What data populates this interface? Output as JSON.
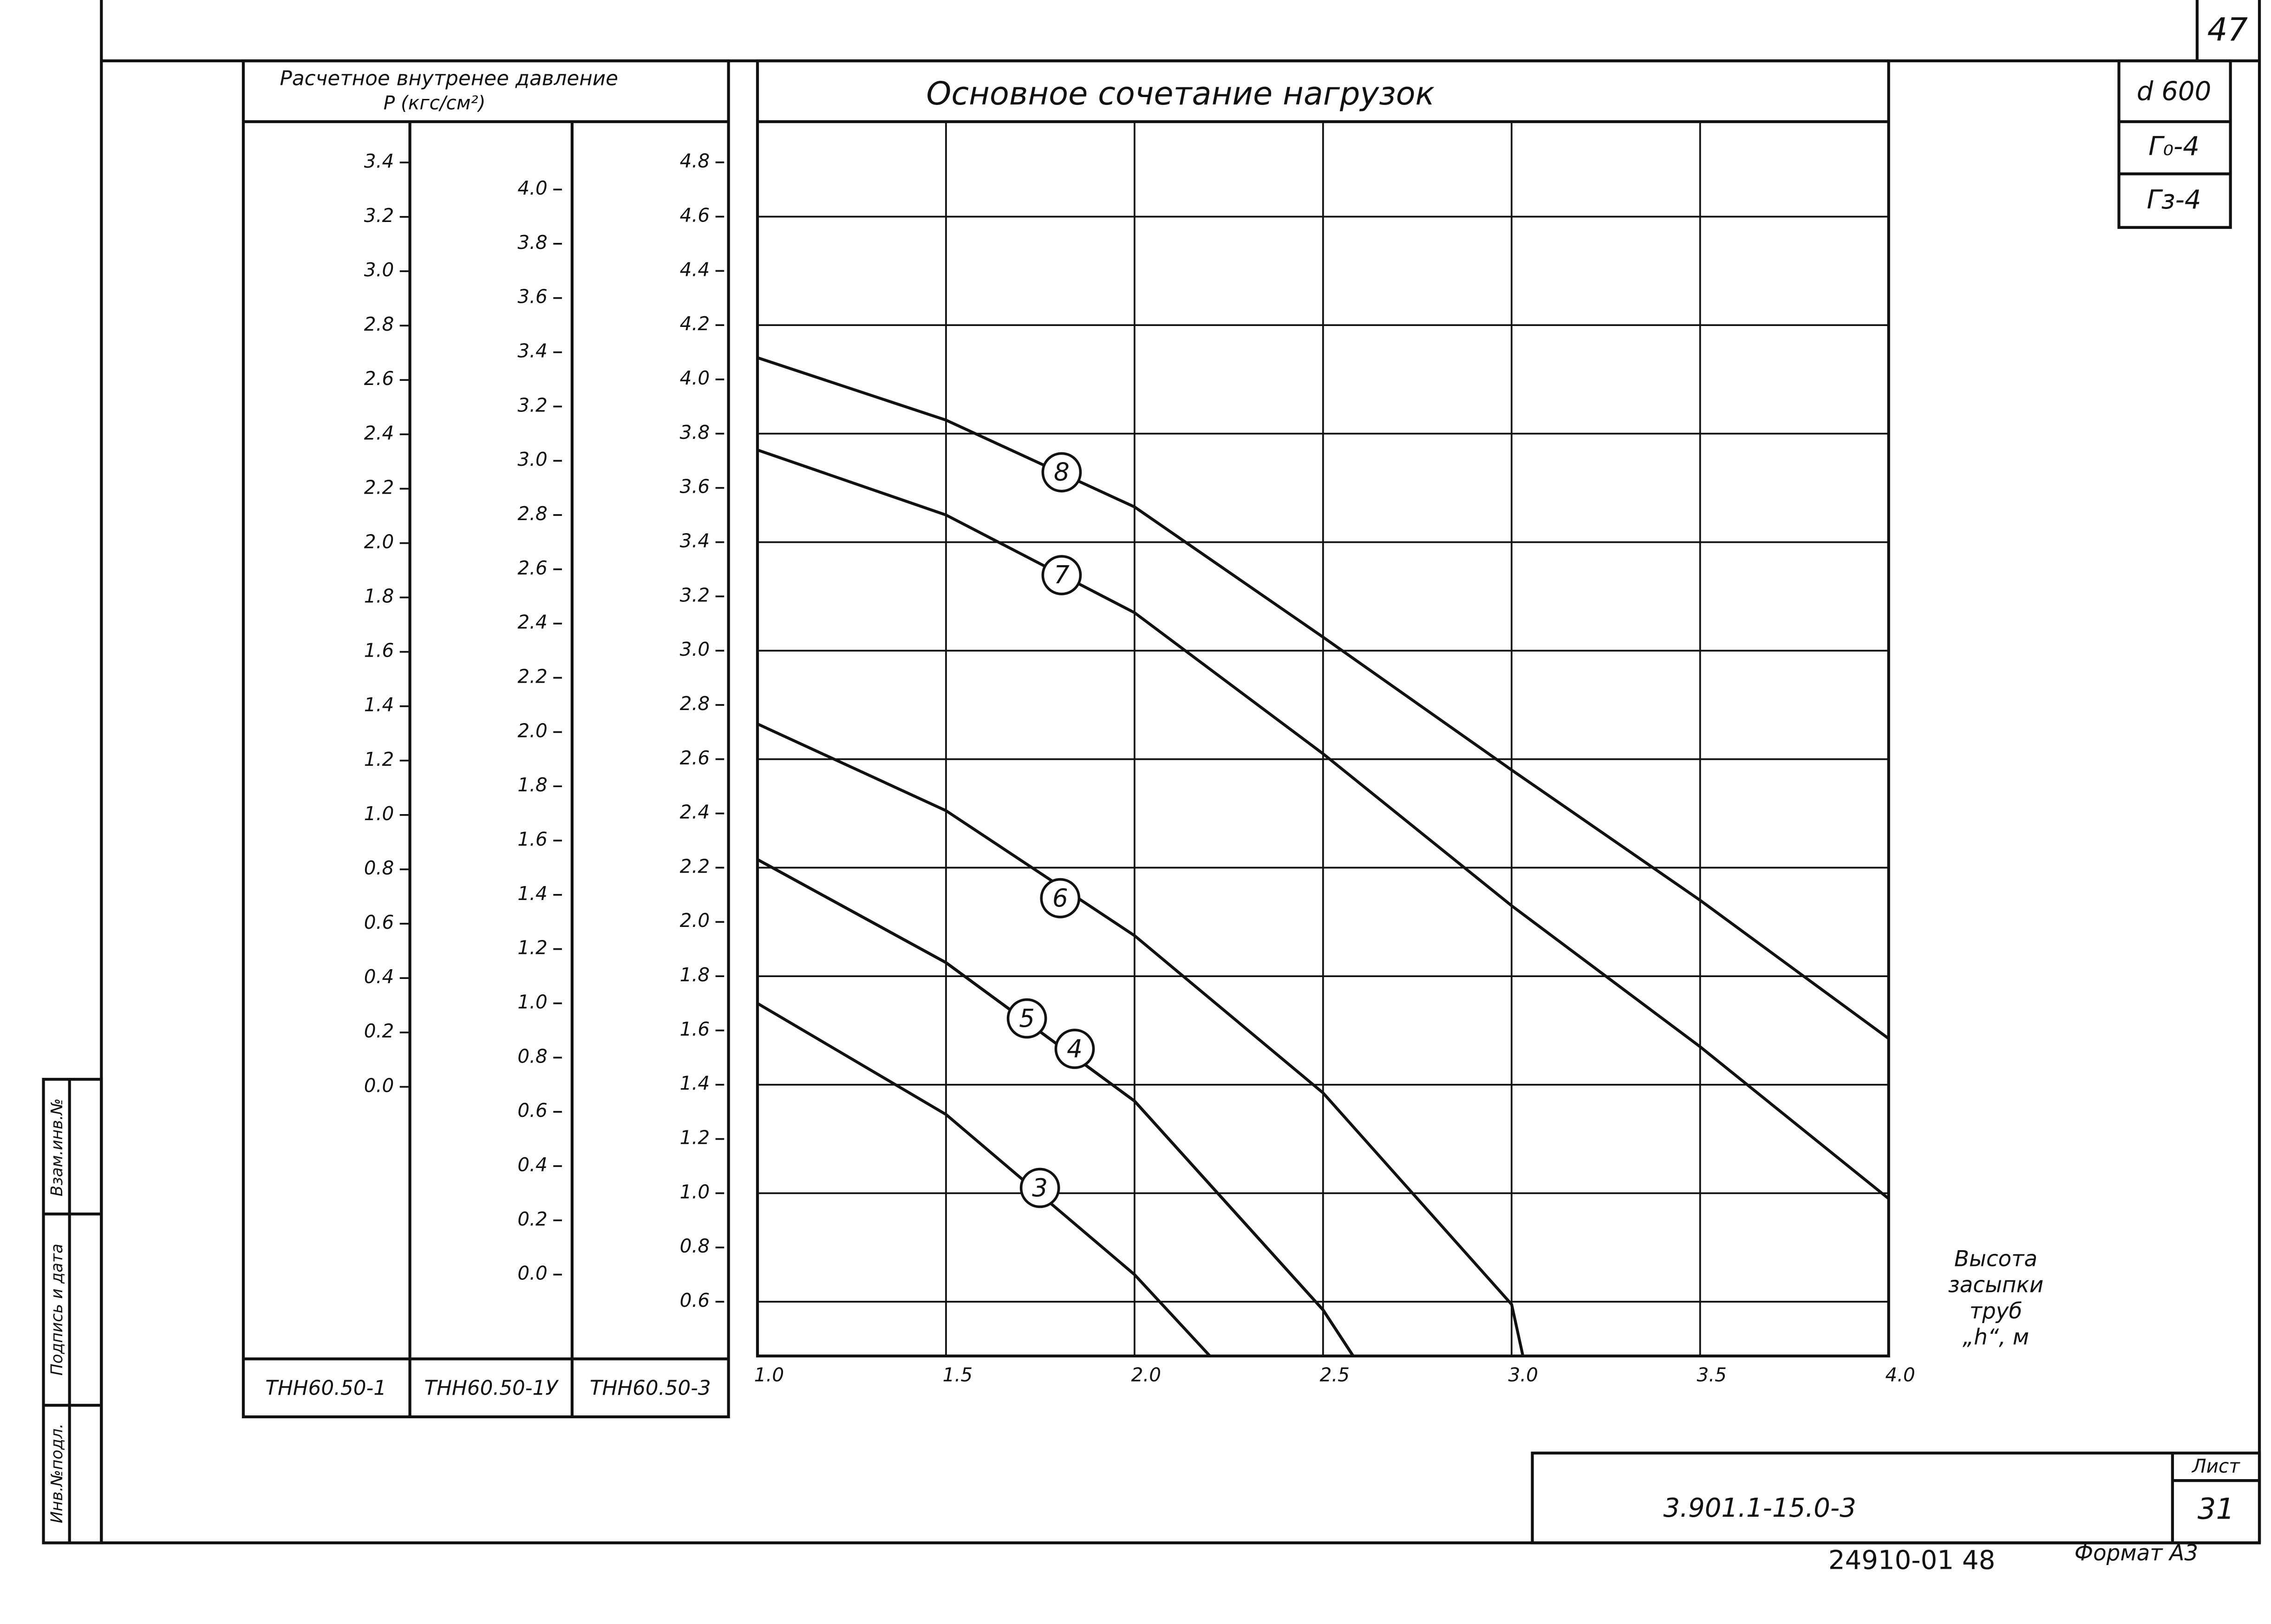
{
  "chart_data": {
    "type": "line",
    "title": "Основное сочетание нагрузок",
    "y_axis_title": "Расчетное внутренее давление",
    "y_axis_unit": "P (кгс/см²)",
    "xlabel": [
      "Высота",
      "засыпки",
      "труб",
      "„h“, м"
    ],
    "xlim": [
      1,
      4
    ],
    "xticks": [
      {
        "value": 1,
        "label": "1.0"
      },
      1.5,
      {
        "value": 2,
        "label": "2.0"
      },
      2.5,
      {
        "value": 3,
        "label": "3.0"
      },
      3.5,
      {
        "value": 4,
        "label": "4.0"
      }
    ],
    "grid": true,
    "color": "#111111",
    "y_scales": [
      {
        "name": "ТНН60.50-1",
        "ylim": [
          -0.99,
          3.55
        ],
        "yticks": [
          3.4,
          3.2,
          {
            "value": 3,
            "label": "3.0"
          },
          2.8,
          2.6,
          2.4,
          2.2,
          {
            "value": 2,
            "label": "2.0"
          },
          1.8,
          1.6,
          1.4,
          1.2,
          {
            "value": 1,
            "label": "1.0"
          },
          0.8,
          0.6,
          0.4,
          0.2,
          {
            "value": 0,
            "label": "0.0"
          }
        ]
      },
      {
        "name": "ТНН60.50-1У",
        "ylim": [
          -0.3,
          4.25
        ],
        "yticks": [
          {
            "value": 4,
            "label": "4.0"
          },
          3.8,
          3.6,
          3.4,
          3.2,
          {
            "value": 3,
            "label": "3.0"
          },
          2.8,
          2.6,
          2.4,
          2.2,
          {
            "value": 2,
            "label": "2.0"
          },
          1.8,
          1.6,
          1.4,
          1.2,
          {
            "value": 1,
            "label": "1.0"
          },
          0.8,
          0.6,
          0.4,
          0.2,
          {
            "value": 0,
            "label": "0.0"
          }
        ]
      },
      {
        "name": "ТНН60.50-3",
        "ylim": [
          0.4,
          4.95
        ],
        "yticks": [
          4.8,
          4.6,
          4.4,
          4.2,
          {
            "value": 4,
            "label": "4.0"
          },
          3.8,
          3.6,
          3.4,
          3.2,
          {
            "value": 3,
            "label": "3.0"
          },
          2.8,
          2.6,
          2.4,
          2.2,
          {
            "value": 2,
            "label": "2.0"
          },
          1.8,
          1.6,
          1.4,
          1.2,
          {
            "value": 1,
            "label": "1.0"
          },
          0.8,
          0.6
        ]
      }
    ],
    "series": [
      {
        "name": "8",
        "x": [
          1,
          1.5,
          2,
          2.5,
          3,
          3.5,
          4
        ],
        "values": [
          4.08,
          3.85,
          3.53,
          3.05,
          2.56,
          2.08,
          1.57
        ]
      },
      {
        "name": "7",
        "x": [
          1,
          1.5,
          2,
          2.5,
          3,
          3.5,
          4
        ],
        "values": [
          3.74,
          3.5,
          3.14,
          2.62,
          2.06,
          1.54,
          0.98
        ]
      },
      {
        "name": "6",
        "x": [
          1,
          1.5,
          2,
          2.5,
          3,
          3.03
        ],
        "values": [
          2.73,
          2.41,
          1.95,
          1.37,
          0.59,
          0.4
        ]
      },
      {
        "name": "5",
        "x": [
          1,
          1.5,
          2,
          2.5,
          2.58
        ],
        "values": [
          2.23,
          1.85,
          1.34,
          0.57,
          0.4
        ]
      },
      {
        "name": "4",
        "x": [
          1,
          1.5,
          2,
          2.5,
          2.58
        ],
        "values": [
          2.23,
          1.85,
          1.34,
          0.57,
          0.4
        ]
      },
      {
        "name": "3",
        "x": [
          1,
          1.5,
          2,
          2.2
        ],
        "values": [
          1.7,
          1.29,
          0.7,
          0.4
        ]
      }
    ]
  },
  "stamp": {
    "sheet_top": "47",
    "diameter": "d 600",
    "g0": "Г₀-4",
    "gz": "Гз-4",
    "doc_code": "3.901.1-15.0-3",
    "sheet_label": "Лист",
    "sheet": "31",
    "archive_no": "24910-01 48",
    "format": "Формат А3",
    "side": [
      "Взам.инв.№",
      "Подпись и дата",
      "Инв.№подл."
    ]
  }
}
